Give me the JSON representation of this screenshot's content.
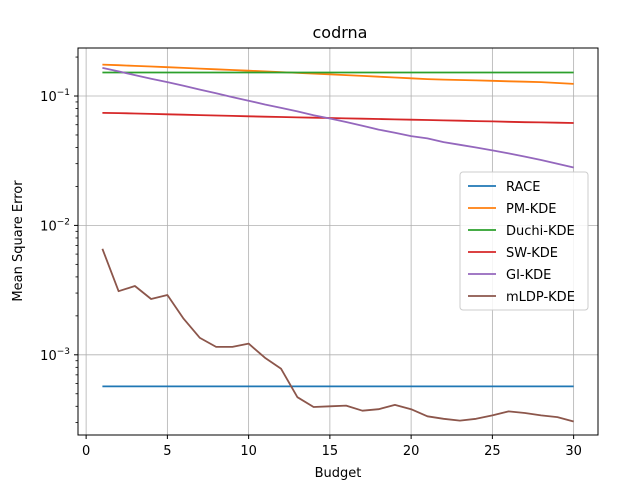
{
  "chart_data": {
    "type": "line",
    "title": "codrna",
    "xlabel": "Budget",
    "ylabel": "Mean Square Error",
    "yscale": "log",
    "xlim": [
      -0.5,
      31.5
    ],
    "ylim": [
      0.00024,
      0.235
    ],
    "xticks": [
      0,
      5,
      10,
      15,
      20,
      25,
      30
    ],
    "yticks": [
      {
        "value": 0.001,
        "base": "10",
        "exp": "−3"
      },
      {
        "value": 0.01,
        "base": "10",
        "exp": "−2"
      },
      {
        "value": 0.1,
        "base": "10",
        "exp": "−1"
      }
    ],
    "grid": true,
    "legend_position": "center-right",
    "x": [
      1,
      2,
      3,
      4,
      5,
      6,
      7,
      8,
      9,
      10,
      11,
      12,
      13,
      14,
      15,
      16,
      17,
      18,
      19,
      20,
      21,
      22,
      23,
      24,
      25,
      26,
      27,
      28,
      29,
      30
    ],
    "series": [
      {
        "name": "RACE",
        "color": "#1f77b4",
        "values": [
          0.00057,
          0.00057,
          0.00057,
          0.00057,
          0.00057,
          0.00057,
          0.00057,
          0.00057,
          0.00057,
          0.00057,
          0.00057,
          0.00057,
          0.00057,
          0.00057,
          0.00057,
          0.00057,
          0.00057,
          0.00057,
          0.00057,
          0.00057,
          0.00057,
          0.00057,
          0.00057,
          0.00057,
          0.00057,
          0.00057,
          0.00057,
          0.00057,
          0.00057,
          0.00057
        ]
      },
      {
        "name": "PM-KDE",
        "color": "#ff7f0e",
        "values": [
          0.175,
          0.173,
          0.171,
          0.169,
          0.167,
          0.165,
          0.163,
          0.161,
          0.159,
          0.157,
          0.155,
          0.153,
          0.151,
          0.149,
          0.147,
          0.145,
          0.143,
          0.141,
          0.139,
          0.137,
          0.135,
          0.134,
          0.133,
          0.132,
          0.131,
          0.13,
          0.129,
          0.128,
          0.126,
          0.124
        ]
      },
      {
        "name": "Duchi-KDE",
        "color": "#2ca02c",
        "values": [
          0.152,
          0.152,
          0.152,
          0.152,
          0.152,
          0.152,
          0.152,
          0.152,
          0.152,
          0.152,
          0.152,
          0.152,
          0.152,
          0.152,
          0.152,
          0.152,
          0.152,
          0.152,
          0.152,
          0.152,
          0.152,
          0.152,
          0.152,
          0.152,
          0.152,
          0.152,
          0.152,
          0.152,
          0.152,
          0.152
        ]
      },
      {
        "name": "SW-KDE",
        "color": "#d62728",
        "values": [
          0.074,
          0.0738,
          0.0733,
          0.0728,
          0.0722,
          0.0717,
          0.0712,
          0.0707,
          0.0702,
          0.0697,
          0.0692,
          0.0688,
          0.0684,
          0.068,
          0.0676,
          0.0672,
          0.0668,
          0.0664,
          0.066,
          0.0656,
          0.0652,
          0.0648,
          0.0644,
          0.064,
          0.0636,
          0.0632,
          0.0628,
          0.0625,
          0.0622,
          0.0619
        ]
      },
      {
        "name": "GI-KDE",
        "color": "#9467bd",
        "values": [
          0.165,
          0.155,
          0.145,
          0.136,
          0.128,
          0.12,
          0.112,
          0.105,
          0.098,
          0.092,
          0.086,
          0.081,
          0.076,
          0.071,
          0.067,
          0.063,
          0.059,
          0.055,
          0.052,
          0.049,
          0.047,
          0.044,
          0.042,
          0.04,
          0.038,
          0.036,
          0.034,
          0.032,
          0.03,
          0.028
        ]
      },
      {
        "name": "mLDP-KDE",
        "color": "#8c564b",
        "values": [
          0.0066,
          0.0031,
          0.0034,
          0.0027,
          0.0029,
          0.0019,
          0.00135,
          0.00115,
          0.00115,
          0.00122,
          0.00095,
          0.00078,
          0.00047,
          0.000395,
          0.0004,
          0.000405,
          0.00037,
          0.00038,
          0.00041,
          0.00038,
          0.000335,
          0.00032,
          0.00031,
          0.00032,
          0.00034,
          0.000365,
          0.000355,
          0.00034,
          0.00033,
          0.000305
        ]
      }
    ]
  }
}
